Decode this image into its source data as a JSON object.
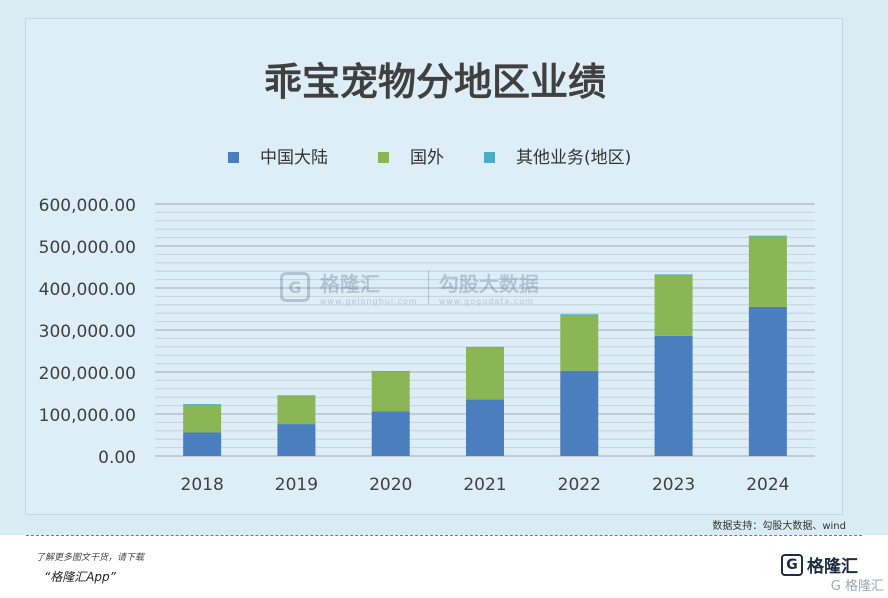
{
  "chart_data": {
    "type": "bar",
    "stacked": true,
    "title": "乖宝宠物分地区业绩",
    "categories": [
      "2018",
      "2019",
      "2020",
      "2021",
      "2022",
      "2023",
      "2024"
    ],
    "series": [
      {
        "name": "中国大陆",
        "color": "#4a7ebf",
        "values": [
          56000,
          76000,
          106000,
          135000,
          203000,
          286000,
          355000
        ]
      },
      {
        "name": "国外",
        "color": "#8bb655",
        "values": [
          66000,
          67000,
          95000,
          123000,
          133000,
          145000,
          168000
        ]
      },
      {
        "name": "其他业务(地区)",
        "color": "#4bacc6",
        "values": [
          1500,
          1500,
          1500,
          1500,
          1500,
          1500,
          1500
        ]
      }
    ],
    "yticks": [
      "0.00",
      "100,000.00",
      "200,000.00",
      "300,000.00",
      "400,000.00",
      "500,000.00",
      "600,000.00"
    ],
    "ylim": [
      0,
      600000
    ],
    "legend_position": "top",
    "grid": true
  },
  "watermark": {
    "logo_letter": "G",
    "name": "格隆汇",
    "sub": "www.gelonghui.com",
    "cn": "勾股大数据",
    "url": "www.gogudata.com"
  },
  "source": "数据支持：勾股大数据、wind",
  "footer": {
    "line1": "了解更多图文干货，请下载",
    "line2": "“格隆汇App”",
    "logo_letter": "G",
    "logo_text": "格隆汇",
    "corner": "G 格隆汇"
  }
}
